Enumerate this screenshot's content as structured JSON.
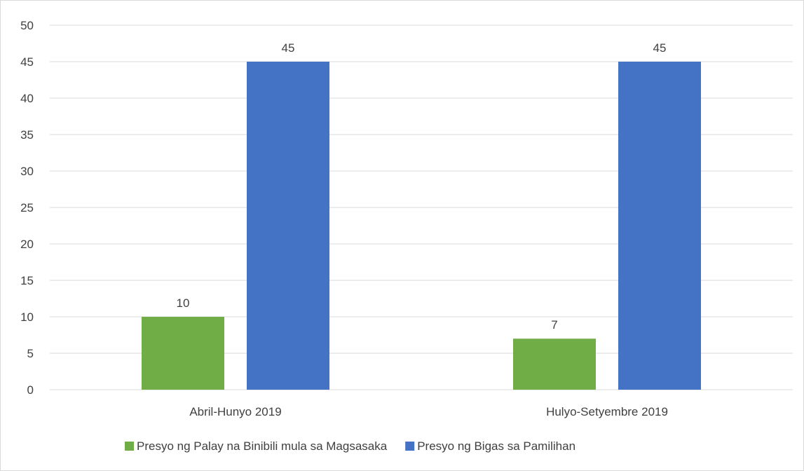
{
  "chart_data": {
    "type": "bar",
    "title": "",
    "xlabel": "",
    "ylabel": "",
    "categories": [
      "Abril-Hunyo 2019",
      "Hulyo-Setyembre 2019"
    ],
    "series": [
      {
        "name": "Presyo ng Palay na Binibili mula sa Magsasaka",
        "values": [
          10,
          7
        ],
        "color": "#70ad47"
      },
      {
        "name": "Presyo ng Bigas sa Pamilihan",
        "values": [
          45,
          45
        ],
        "color": "#4472c4"
      }
    ],
    "ylim": [
      0,
      50
    ],
    "yticks": [
      0,
      5,
      10,
      15,
      20,
      25,
      30,
      35,
      40,
      45,
      50
    ],
    "grid": true,
    "data_labels": true,
    "legend_position": "bottom"
  }
}
